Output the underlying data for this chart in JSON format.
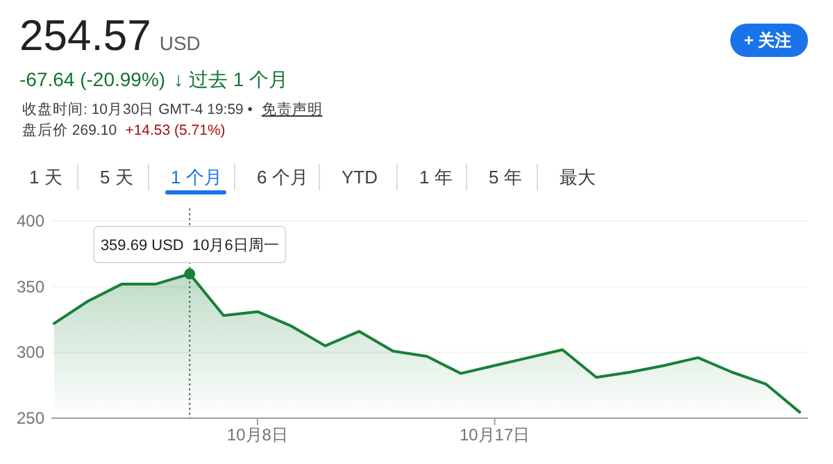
{
  "chart_data": {
    "type": "area",
    "title": "254.57",
    "annotations": [
      "USD",
      "-67.64 (-20.99%)",
      "↓ 过去 1 个月",
      "收盘时间: 10月30日 GMT-4 19:59 •",
      "免责声明",
      "盘后价 269.10",
      "+14.53 (5.71%)",
      "+ 关注",
      "1 天",
      "5 天",
      "1 个月",
      "6 个月",
      "YTD",
      "1 年",
      "5 年",
      "最大",
      {
        "text": "359.69 USD  10月6日周一",
        "y": 359.69
      }
    ],
    "categories": [
      null,
      null,
      null,
      null,
      null,
      null,
      "10月8日",
      null,
      null,
      null,
      null,
      null,
      null,
      "10月17日",
      null,
      null,
      null,
      null,
      null,
      null,
      null,
      null,
      null
    ],
    "series": [
      {
        "color": "#188038",
        "values": [
          322,
          339,
          352,
          352,
          359.69,
          328,
          331,
          320,
          305,
          316,
          301,
          297,
          284,
          290,
          296,
          302,
          281,
          285,
          290,
          296,
          285,
          276,
          254.57
        ]
      }
    ],
    "ylim": [
      250,
      400
    ],
    "yticks": [
      250,
      300,
      350,
      400
    ],
    "grid": "y"
  }
}
